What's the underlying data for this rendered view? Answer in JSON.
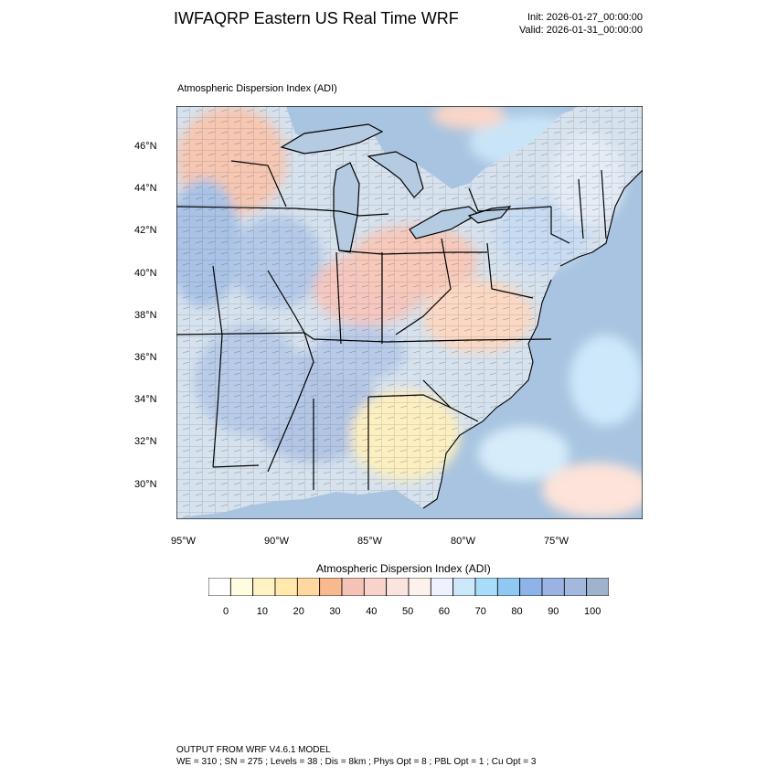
{
  "header": {
    "title": "IWFAQRP Eastern US Real Time WRF",
    "init": "Init: 2026-01-27_00:00:00",
    "valid": "Valid: 2026-01-31_00:00:00"
  },
  "map": {
    "field_title": "Atmospheric Dispersion Index   (ADI)",
    "lat_labels": [
      "46°N",
      "44°N",
      "42°N",
      "40°N",
      "38°N",
      "36°N",
      "34°N",
      "32°N",
      "30°N"
    ],
    "lon_labels": [
      "95°W",
      "90°W",
      "85°W",
      "80°W",
      "75°W"
    ],
    "colors": {
      "ocean": "#a8c4e0",
      "land_base": "#d4e1ee",
      "low_adi": "#fde7c6",
      "mid_adi": "#f4c7c0",
      "high_adi": "#a9c2e6",
      "county_lines": "#333333",
      "state_lines": "#000000"
    }
  },
  "colorbar": {
    "title": "Atmospheric Dispersion Index  (ADI)",
    "tick_labels": [
      "0",
      "10",
      "20",
      "30",
      "40",
      "50",
      "60",
      "70",
      "80",
      "90",
      "100"
    ],
    "colors": [
      "#ffffff",
      "#fffce0",
      "#fff3c4",
      "#ffe9ad",
      "#ffd8a0",
      "#f9b98f",
      "#f5c2b6",
      "#f8d3cc",
      "#fbe3de",
      "#fdf1ee",
      "#eef1ff",
      "#cde8fb",
      "#a9dcf8",
      "#8fc8f3",
      "#8db3e8",
      "#9bb2e3",
      "#a3b8dd",
      "#9fb3cc"
    ]
  },
  "footer": {
    "line1": "OUTPUT FROM WRF V4.6.1 MODEL",
    "line2": "WE = 310 ; SN = 275 ; Levels = 38 ; Dis = 8km ; Phys Opt = 8 ; PBL Opt = 1 ; Cu Opt = 3"
  }
}
